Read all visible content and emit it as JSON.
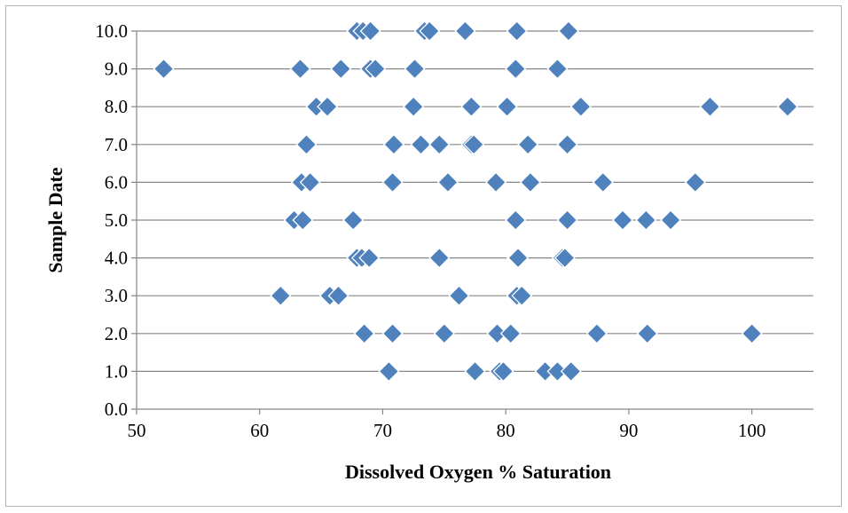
{
  "chart_data": {
    "type": "scatter",
    "title": "",
    "xlabel": "Dissolved Oxygen % Saturation",
    "ylabel": "Sample Date",
    "xlim": [
      50,
      105
    ],
    "ylim": [
      0,
      10
    ],
    "x_ticks": [
      50,
      60,
      70,
      80,
      90,
      100
    ],
    "x_tick_labels": [
      "50",
      "60",
      "70",
      "80",
      "90",
      "100"
    ],
    "y_ticks": [
      0,
      1,
      2,
      3,
      4,
      5,
      6,
      7,
      8,
      9,
      10
    ],
    "y_tick_labels": [
      "0.0",
      "1.0",
      "2.0",
      "3.0",
      "4.0",
      "5.0",
      "6.0",
      "7.0",
      "8.0",
      "9.0",
      "10.0"
    ],
    "grid": "horizontal",
    "legend": "none",
    "marker": "diamond",
    "marker_color": "#4f81bd",
    "marker_edge_color": "#ffffff",
    "series": [
      {
        "points": [
          [
            70.5,
            1
          ],
          [
            77.5,
            1
          ],
          [
            79.5,
            1
          ],
          [
            79.8,
            1
          ],
          [
            83.2,
            1
          ],
          [
            84.2,
            1
          ],
          [
            85.3,
            1
          ],
          [
            68.5,
            2
          ],
          [
            70.8,
            2
          ],
          [
            75.0,
            2
          ],
          [
            79.3,
            2
          ],
          [
            80.4,
            2
          ],
          [
            87.4,
            2
          ],
          [
            91.5,
            2
          ],
          [
            100.0,
            2
          ],
          [
            61.7,
            3
          ],
          [
            65.7,
            3
          ],
          [
            66.4,
            3
          ],
          [
            76.2,
            3
          ],
          [
            80.9,
            3
          ],
          [
            81.3,
            3
          ],
          [
            67.9,
            4
          ],
          [
            68.3,
            4
          ],
          [
            68.9,
            4
          ],
          [
            74.6,
            4
          ],
          [
            80.9,
            4
          ],
          [
            81.0,
            4
          ],
          [
            84.6,
            4
          ],
          [
            84.8,
            4
          ],
          [
            62.8,
            5
          ],
          [
            63.5,
            5
          ],
          [
            67.6,
            5
          ],
          [
            80.8,
            5
          ],
          [
            85.0,
            5
          ],
          [
            89.5,
            5
          ],
          [
            91.4,
            5
          ],
          [
            93.4,
            5
          ],
          [
            63.4,
            6
          ],
          [
            64.1,
            6
          ],
          [
            70.8,
            6
          ],
          [
            75.3,
            6
          ],
          [
            79.2,
            6
          ],
          [
            82.0,
            6
          ],
          [
            87.9,
            6
          ],
          [
            95.4,
            6
          ],
          [
            63.8,
            7
          ],
          [
            70.9,
            7
          ],
          [
            73.1,
            7
          ],
          [
            74.6,
            7
          ],
          [
            77.2,
            7
          ],
          [
            77.4,
            7
          ],
          [
            81.8,
            7
          ],
          [
            85.0,
            7
          ],
          [
            64.6,
            8
          ],
          [
            65.5,
            8
          ],
          [
            72.5,
            8
          ],
          [
            77.2,
            8
          ],
          [
            80.1,
            8
          ],
          [
            86.1,
            8
          ],
          [
            96.6,
            8
          ],
          [
            102.9,
            8
          ],
          [
            52.2,
            9
          ],
          [
            63.3,
            9
          ],
          [
            66.6,
            9
          ],
          [
            69.0,
            9
          ],
          [
            69.4,
            9
          ],
          [
            72.6,
            9
          ],
          [
            80.8,
            9
          ],
          [
            84.2,
            9
          ],
          [
            67.9,
            10
          ],
          [
            68.4,
            10
          ],
          [
            69.0,
            10
          ],
          [
            73.4,
            10
          ],
          [
            73.8,
            10
          ],
          [
            76.7,
            10
          ],
          [
            80.9,
            10
          ],
          [
            85.1,
            10
          ]
        ]
      }
    ]
  }
}
